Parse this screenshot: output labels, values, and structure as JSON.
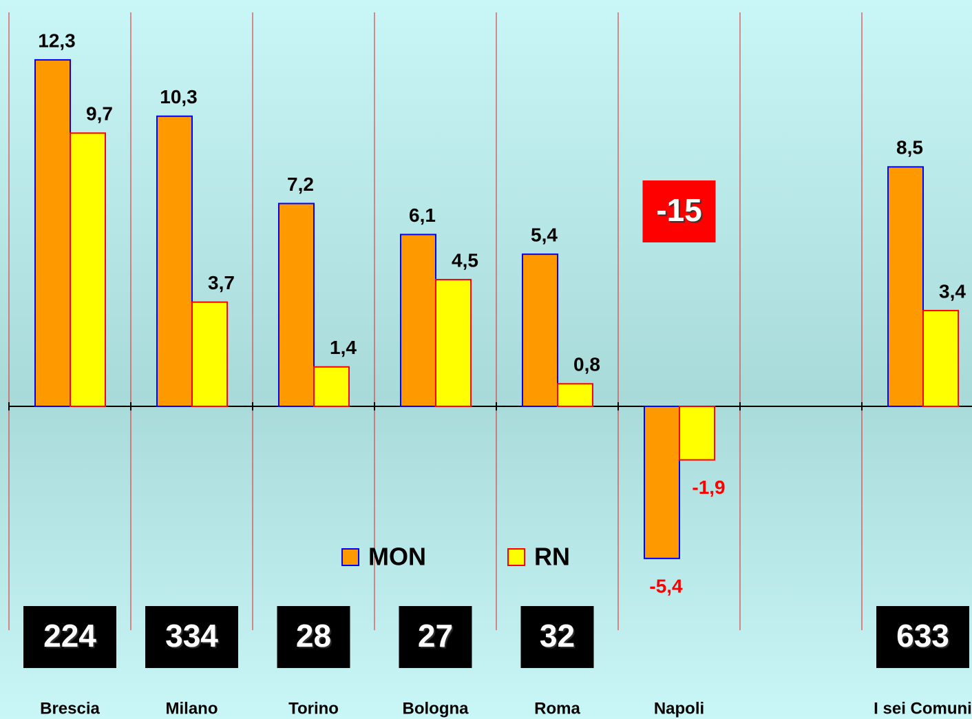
{
  "chart_data": {
    "type": "bar",
    "categories": [
      "Brescia",
      "Milano",
      "Torino",
      "Bologna",
      "Roma",
      "Napoli",
      null,
      "I sei Comuni"
    ],
    "series": [
      {
        "name": "MON",
        "color": "#ff9900",
        "edge_color": "#0000ff",
        "values": [
          12.3,
          10.3,
          7.2,
          6.1,
          5.4,
          -5.4,
          null,
          8.5
        ],
        "value_labels": [
          "12,3",
          "10,3",
          "7,2",
          "6,1",
          "5,4",
          "-5,4",
          null,
          "8,5"
        ]
      },
      {
        "name": "RN",
        "color": "#ffff00",
        "edge_color": "#ff0000",
        "values": [
          9.7,
          3.7,
          1.4,
          4.5,
          0.8,
          -1.9,
          null,
          3.4
        ],
        "value_labels": [
          "9,7",
          "3,7",
          "1,4",
          "4,5",
          "0,8",
          "-1,9",
          null,
          "3,4"
        ]
      }
    ],
    "totals": [
      224,
      334,
      28,
      27,
      32,
      -15,
      null,
      633
    ],
    "total_box_color": "#000000",
    "negative_total_box_color": "#ff0000",
    "ylim": [
      -6,
      14
    ]
  }
}
